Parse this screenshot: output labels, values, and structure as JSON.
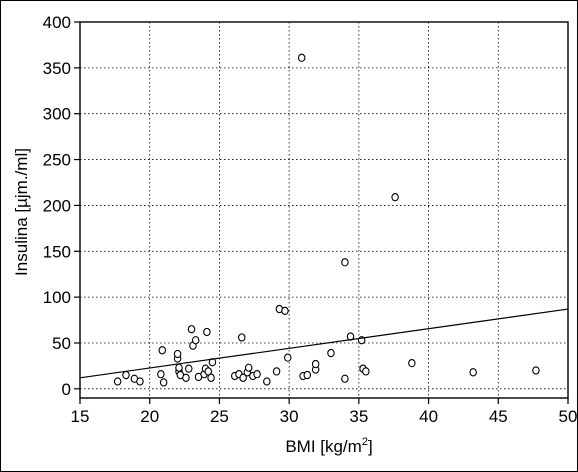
{
  "chart_data": {
    "type": "scatter",
    "title": "",
    "xlabel": {
      "main": "BMI [kg/m",
      "sup": "2",
      "end": "]"
    },
    "ylabel": "Insulina [µjm./ml]",
    "xlim": [
      15,
      50
    ],
    "ylim": [
      -10,
      400
    ],
    "xticks": [
      15,
      20,
      25,
      30,
      35,
      40,
      45,
      50
    ],
    "yticks": [
      0,
      50,
      100,
      150,
      200,
      250,
      300,
      350,
      400
    ],
    "grid": true,
    "series": [
      {
        "points": [
          [
            17.7,
            8
          ],
          [
            18.3,
            15
          ],
          [
            18.9,
            11
          ],
          [
            19.3,
            8
          ],
          [
            20.8,
            16
          ],
          [
            20.9,
            42
          ],
          [
            21.0,
            7
          ],
          [
            22.0,
            33
          ],
          [
            22.0,
            38
          ],
          [
            22.1,
            19
          ],
          [
            22.1,
            23
          ],
          [
            22.2,
            15
          ],
          [
            22.6,
            12
          ],
          [
            22.8,
            22
          ],
          [
            23.0,
            65
          ],
          [
            23.1,
            47
          ],
          [
            23.3,
            53
          ],
          [
            23.5,
            13
          ],
          [
            23.9,
            16
          ],
          [
            24.0,
            22
          ],
          [
            24.1,
            62
          ],
          [
            24.2,
            19
          ],
          [
            24.4,
            12
          ],
          [
            24.5,
            29
          ],
          [
            26.1,
            14
          ],
          [
            26.4,
            16
          ],
          [
            26.6,
            56
          ],
          [
            26.7,
            12
          ],
          [
            27.0,
            18
          ],
          [
            27.1,
            23
          ],
          [
            27.4,
            14
          ],
          [
            27.7,
            16
          ],
          [
            28.4,
            8
          ],
          [
            29.1,
            19
          ],
          [
            29.3,
            87
          ],
          [
            29.7,
            85
          ],
          [
            29.9,
            34
          ],
          [
            30.9,
            361
          ],
          [
            31.0,
            14
          ],
          [
            31.3,
            15
          ],
          [
            31.9,
            21
          ],
          [
            31.9,
            27
          ],
          [
            33.0,
            39
          ],
          [
            34.0,
            138
          ],
          [
            34.0,
            11
          ],
          [
            34.4,
            57
          ],
          [
            35.2,
            53
          ],
          [
            35.3,
            22
          ],
          [
            35.5,
            19
          ],
          [
            37.6,
            209
          ],
          [
            38.8,
            28
          ],
          [
            43.2,
            18
          ],
          [
            47.7,
            20
          ]
        ]
      }
    ],
    "trendline": {
      "x": [
        15,
        50
      ],
      "y": [
        12,
        87
      ]
    }
  }
}
